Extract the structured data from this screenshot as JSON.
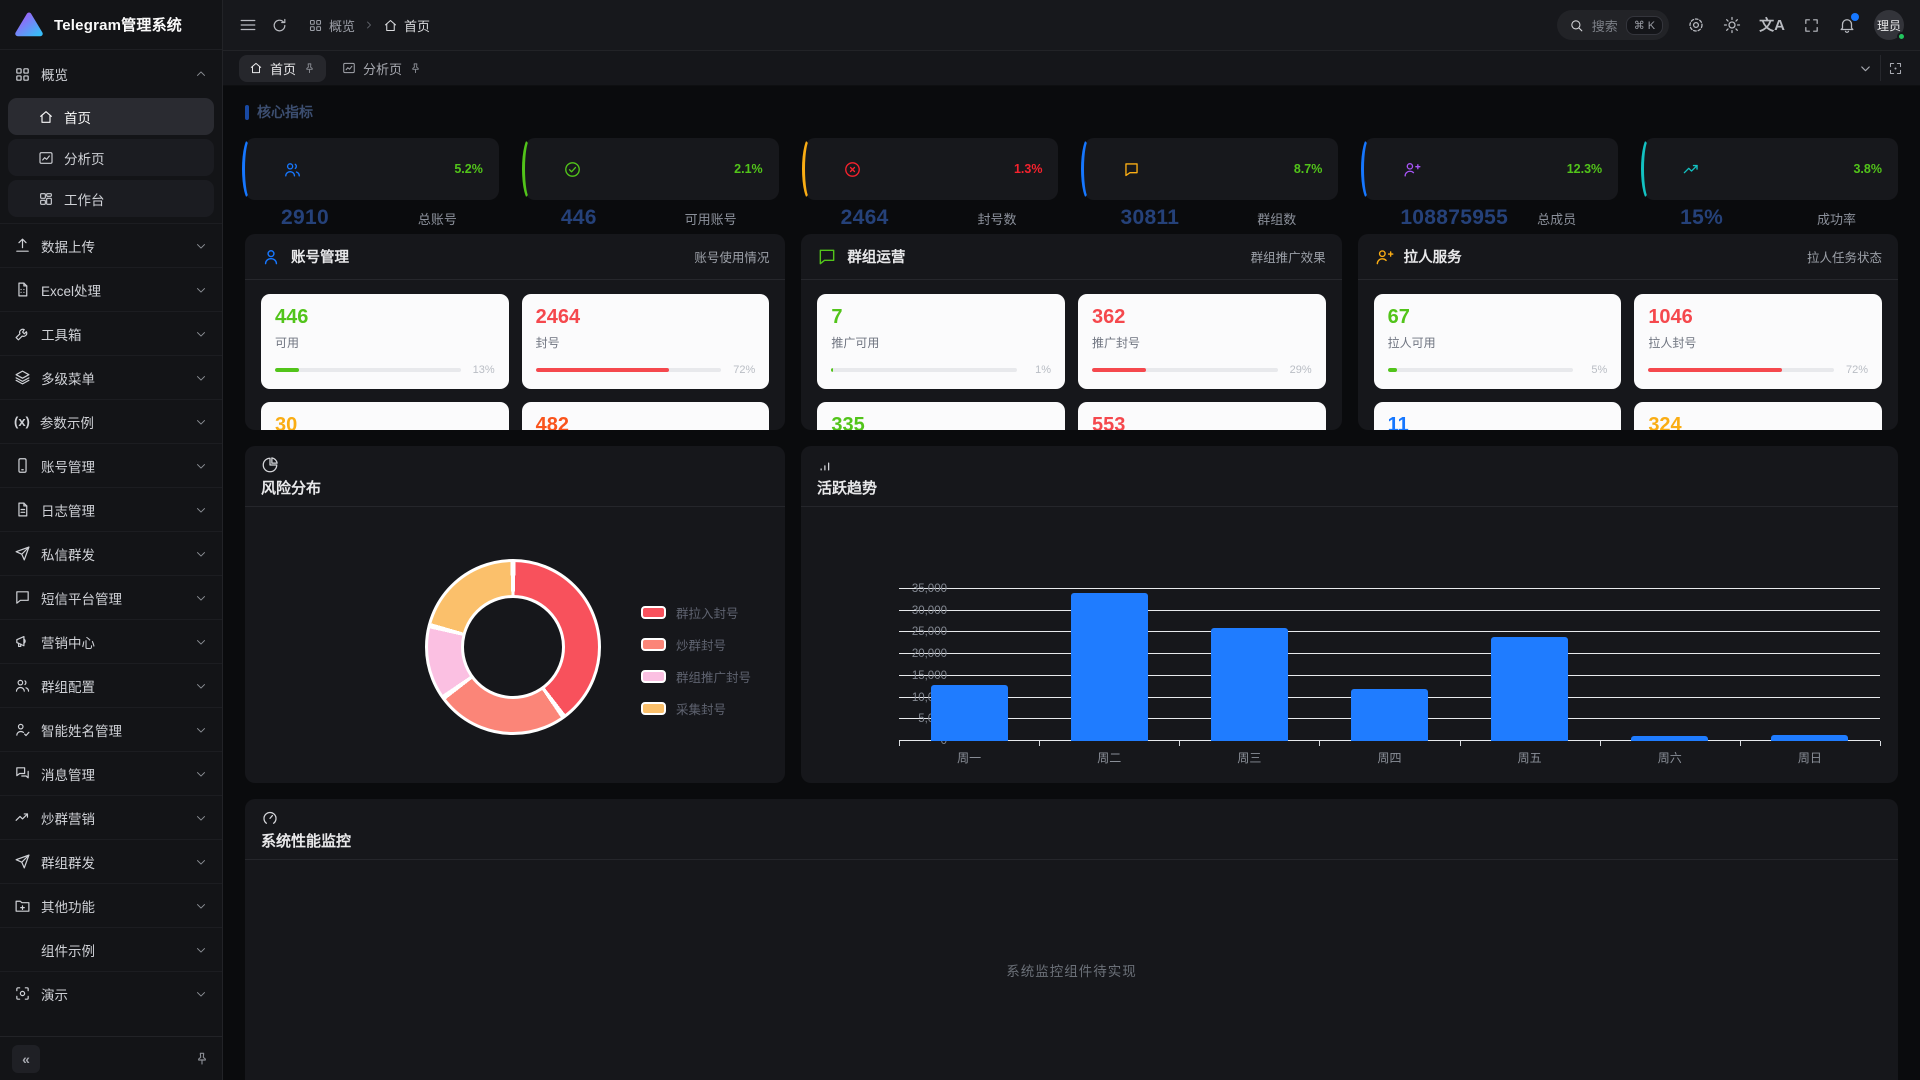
{
  "app": {
    "title": "Telegram管理系统"
  },
  "header": {
    "breadcrumb": [
      {
        "icon": "grid",
        "label": "概览"
      },
      {
        "icon": "home",
        "label": "首页"
      }
    ],
    "search": {
      "placeholder": "搜索",
      "shortcut": "⌘ K"
    },
    "icons": [
      "settings",
      "theme-sun",
      "translate",
      "fullscreen",
      "notifications"
    ],
    "notification_badge_color": "#1677ff",
    "user": {
      "name": "理员",
      "status_color": "#22c55e"
    }
  },
  "tabs": [
    {
      "icon": "home",
      "label": "首页",
      "active": true
    },
    {
      "icon": "chart",
      "label": "分析页",
      "active": false
    }
  ],
  "sidebar": {
    "items": [
      {
        "icon": "grid",
        "label": "概览",
        "expanded": true,
        "children": [
          {
            "icon": "home",
            "label": "首页",
            "active": true
          },
          {
            "icon": "chart",
            "label": "分析页",
            "active": false
          },
          {
            "icon": "workbench",
            "label": "工作台",
            "active": false
          }
        ]
      },
      {
        "icon": "upload",
        "label": "数据上传"
      },
      {
        "icon": "excel",
        "label": "Excel处理"
      },
      {
        "icon": "wrench",
        "label": "工具箱"
      },
      {
        "icon": "layers",
        "label": "多级菜单"
      },
      {
        "icon": "params",
        "label": "参数示例"
      },
      {
        "icon": "mobile",
        "label": "账号管理"
      },
      {
        "icon": "filetext",
        "label": "日志管理"
      },
      {
        "icon": "send",
        "label": "私信群发"
      },
      {
        "icon": "chatsq",
        "label": "短信平台管理"
      },
      {
        "icon": "megaphone",
        "label": "营销中心"
      },
      {
        "icon": "users",
        "label": "群组配置"
      },
      {
        "icon": "usercheck",
        "label": "智能姓名管理"
      },
      {
        "icon": "chats",
        "label": "消息管理"
      },
      {
        "icon": "trend",
        "label": "炒群营销"
      },
      {
        "icon": "send",
        "label": "群组群发"
      },
      {
        "icon": "folderplus",
        "label": "其他功能"
      },
      {
        "icon": "",
        "label": "组件示例"
      },
      {
        "icon": "scan",
        "label": "演示"
      }
    ],
    "collapse_label": "«"
  },
  "section": {
    "title": "核心指标",
    "accent": "#1677ff"
  },
  "metrics": [
    {
      "icon": "users",
      "icon_color": "#1677ff",
      "accent": "#1677ff",
      "percent": "5.2%",
      "percent_color": "#52c41a",
      "value": "2910",
      "label": "总账号"
    },
    {
      "icon": "checkcircle",
      "icon_color": "#52c41a",
      "accent": "#52c41a",
      "percent": "2.1%",
      "percent_color": "#52c41a",
      "value": "446",
      "label": "可用账号"
    },
    {
      "icon": "xcircle",
      "icon_color": "#f5222d",
      "accent": "#faad14",
      "percent": "1.3%",
      "percent_color": "#f5222d",
      "value": "2464",
      "label": "封号数"
    },
    {
      "icon": "msg",
      "icon_color": "#faad14",
      "accent": "#1677ff",
      "percent": "8.7%",
      "percent_color": "#52c41a",
      "value": "30811",
      "label": "群组数"
    },
    {
      "icon": "userplus",
      "icon_color": "#a855f7",
      "accent": "#1677ff",
      "percent": "12.3%",
      "percent_color": "#52c41a",
      "value": "108875955",
      "label": "总成员"
    },
    {
      "icon": "trend",
      "icon_color": "#13c2c2",
      "accent": "#13c2c2",
      "percent": "3.8%",
      "percent_color": "#52c41a",
      "value": "15%",
      "label": "成功率"
    }
  ],
  "panels": [
    {
      "icon": "user",
      "icon_color": "#1677ff",
      "title": "账号管理",
      "subtitle": "账号使用情况",
      "stats": [
        {
          "value": "446",
          "color": "#52c41a",
          "label": "可用",
          "progress": 13,
          "progress_label": "13%",
          "bar_color": "#52c41a"
        },
        {
          "value": "2464",
          "color": "#f5484d",
          "label": "封号",
          "progress": 72,
          "progress_label": "72%",
          "bar_color": "#f5484d"
        }
      ],
      "partial_stats": [
        {
          "value": "30",
          "color": "#faad14"
        },
        {
          "value": "482",
          "color": "#fa541c"
        }
      ]
    },
    {
      "icon": "chatsq",
      "icon_color": "#52c41a",
      "title": "群组运营",
      "subtitle": "群组推广效果",
      "stats": [
        {
          "value": "7",
          "color": "#52c41a",
          "label": "推广可用",
          "progress": 1,
          "progress_label": "1%",
          "bar_color": "#52c41a"
        },
        {
          "value": "362",
          "color": "#f5484d",
          "label": "推广封号",
          "progress": 29,
          "progress_label": "29%",
          "bar_color": "#f5484d"
        }
      ],
      "partial_stats": [
        {
          "value": "335",
          "color": "#52c41a"
        },
        {
          "value": "553",
          "color": "#f5484d"
        }
      ]
    },
    {
      "icon": "userplus",
      "icon_color": "#faad14",
      "title": "拉人服务",
      "subtitle": "拉人任务状态",
      "stats": [
        {
          "value": "67",
          "color": "#52c41a",
          "label": "拉人可用",
          "progress": 5,
          "progress_label": "5%",
          "bar_color": "#52c41a"
        },
        {
          "value": "1046",
          "color": "#f5484d",
          "label": "拉人封号",
          "progress": 72,
          "progress_label": "72%",
          "bar_color": "#f5484d"
        }
      ],
      "partial_stats": [
        {
          "value": "11",
          "color": "#1677ff"
        },
        {
          "value": "324",
          "color": "#faad14"
        }
      ]
    }
  ],
  "chart_data": [
    {
      "type": "pie",
      "title": "风险分布",
      "donut": true,
      "legend_position": "right",
      "segments": [
        {
          "label": "群拉入封号",
          "value": 40,
          "color": "#f8515c"
        },
        {
          "label": "炒群封号",
          "value": 25,
          "color": "#fb8578"
        },
        {
          "label": "群组推广封号",
          "value": 14,
          "color": "#fbc0e2"
        },
        {
          "label": "采集封号",
          "value": 21,
          "color": "#fbc06b"
        }
      ]
    },
    {
      "type": "bar",
      "title": "活跃趋势",
      "categories": [
        "周一",
        "周二",
        "周三",
        "周四",
        "周五",
        "周六",
        "周日"
      ],
      "values": [
        13000,
        34000,
        26000,
        12000,
        24000,
        1100,
        1300
      ],
      "ylim": [
        0,
        35000
      ],
      "ytick_interval": 5000,
      "grid": true,
      "bar_color": "#1f7cff",
      "ytick_labels": [
        "0",
        "5,000",
        "10,000",
        "15,000",
        "20,000",
        "25,000",
        "30,000",
        "35,000"
      ]
    }
  ],
  "monitor": {
    "title": "系统性能监控",
    "placeholder": "系统监控组件待实现"
  }
}
